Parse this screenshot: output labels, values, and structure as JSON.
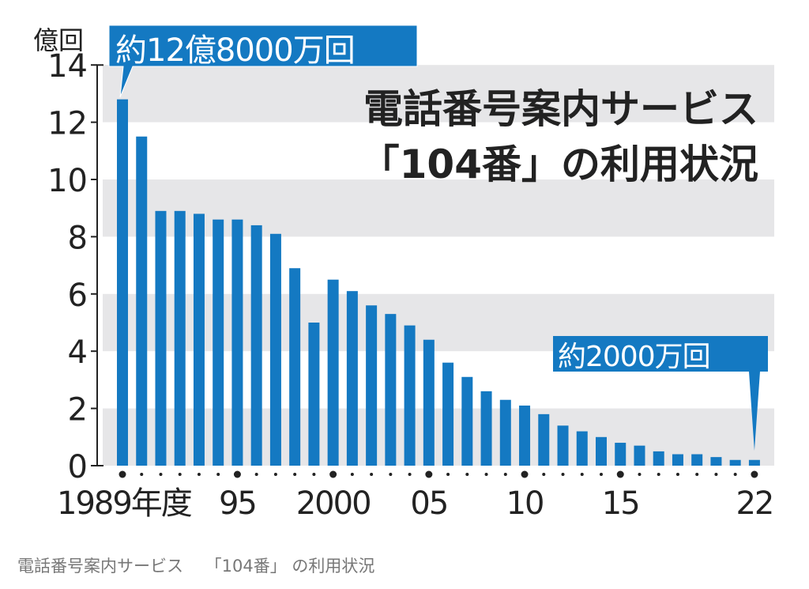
{
  "chart_data": {
    "type": "bar",
    "title_line1": "電話番号案内サービス",
    "title_line2": "「104番」の利用状況",
    "ylabel": "億回",
    "xlabel": "年度",
    "ylim": [
      0,
      14
    ],
    "yticks": [
      0,
      2,
      4,
      6,
      8,
      10,
      12,
      14
    ],
    "xtick_labels": [
      {
        "year": 1989,
        "label": "1989年度"
      },
      {
        "year": 1995,
        "label": "95"
      },
      {
        "year": 2000,
        "label": "2000"
      },
      {
        "year": 2005,
        "label": "05"
      },
      {
        "year": 2010,
        "label": "10"
      },
      {
        "year": 2015,
        "label": "15"
      },
      {
        "year": 2022,
        "label": "22"
      }
    ],
    "years": [
      1989,
      1990,
      1991,
      1992,
      1993,
      1994,
      1995,
      1996,
      1997,
      1998,
      1999,
      2000,
      2001,
      2002,
      2003,
      2004,
      2005,
      2006,
      2007,
      2008,
      2009,
      2010,
      2011,
      2012,
      2013,
      2014,
      2015,
      2016,
      2017,
      2018,
      2019,
      2020,
      2021,
      2022
    ],
    "values": [
      12.8,
      11.5,
      8.9,
      8.9,
      8.8,
      8.6,
      8.6,
      8.4,
      8.1,
      6.9,
      5.0,
      6.5,
      6.1,
      5.6,
      5.3,
      4.9,
      4.4,
      3.6,
      3.1,
      2.6,
      2.3,
      2.1,
      1.8,
      1.4,
      1.2,
      1.0,
      0.8,
      0.7,
      0.5,
      0.4,
      0.4,
      0.3,
      0.2,
      0.2
    ],
    "annotations": [
      {
        "year": 1989,
        "text": "約12億8000万回"
      },
      {
        "year": 2022,
        "text": "約2000万回"
      }
    ],
    "grid": "alternating horizontal bands",
    "colors": {
      "bar": "#1479c2",
      "band": "#e6e6e8",
      "label_bg": "#1479c2"
    }
  },
  "caption": "電話番号案内サービス　 「104番」 の利用状況"
}
